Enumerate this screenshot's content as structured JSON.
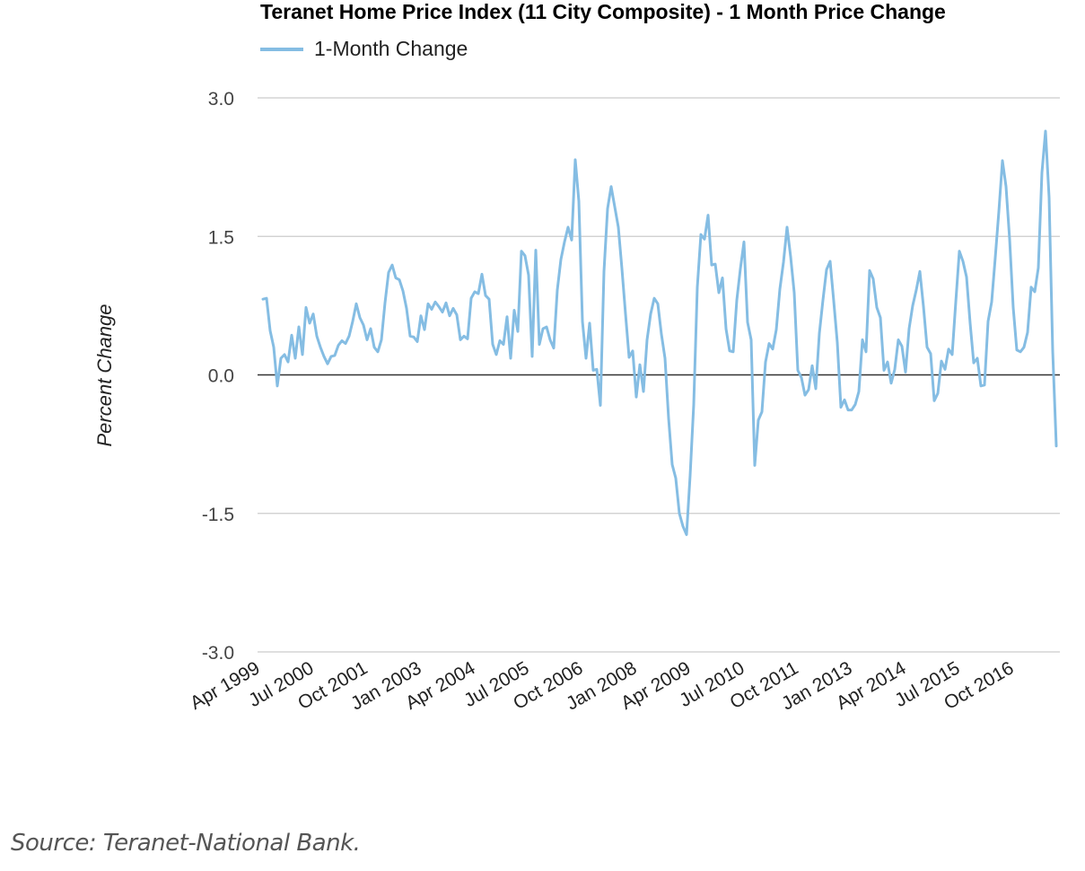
{
  "chart_data": {
    "type": "line",
    "title": "Teranet Home Price Index (11 City Composite) - 1 Month Price Change",
    "ylabel": "Percent Change",
    "xlabel": "",
    "ylim": [
      -3.0,
      3.0
    ],
    "yticks": [
      "3.0",
      "1.5",
      "0.0",
      "-1.5",
      "-3.0"
    ],
    "ytick_values": [
      3.0,
      1.5,
      0.0,
      -1.5,
      -3.0
    ],
    "grid": true,
    "legend": "top-left",
    "x_start": "Apr 1999",
    "x_tick_labels": [
      "Apr 1999",
      "Jul 2000",
      "Oct 2001",
      "Jan 2003",
      "Apr 2004",
      "Jul 2005",
      "Oct 2006",
      "Jan 2008",
      "Apr 2009",
      "Jul 2010",
      "Oct 2011",
      "Jan 2013",
      "Apr 2014",
      "Jul 2015",
      "Oct 2016"
    ],
    "series": [
      {
        "name": "1-Month Change",
        "color": "#85bde3",
        "values": [
          0.82,
          0.83,
          0.48,
          0.3,
          -0.12,
          0.18,
          0.22,
          0.14,
          0.43,
          0.18,
          0.52,
          0.22,
          0.73,
          0.56,
          0.66,
          0.42,
          0.3,
          0.2,
          0.12,
          0.2,
          0.21,
          0.32,
          0.37,
          0.34,
          0.42,
          0.58,
          0.77,
          0.62,
          0.54,
          0.38,
          0.5,
          0.3,
          0.25,
          0.38,
          0.78,
          1.11,
          1.19,
          1.05,
          1.03,
          0.91,
          0.72,
          0.42,
          0.41,
          0.36,
          0.64,
          0.49,
          0.77,
          0.71,
          0.79,
          0.74,
          0.68,
          0.78,
          0.64,
          0.72,
          0.65,
          0.38,
          0.42,
          0.39,
          0.83,
          0.9,
          0.88,
          1.09,
          0.86,
          0.82,
          0.33,
          0.22,
          0.37,
          0.33,
          0.63,
          0.18,
          0.7,
          0.47,
          1.34,
          1.29,
          1.08,
          0.2,
          1.35,
          0.33,
          0.5,
          0.52,
          0.38,
          0.29,
          0.92,
          1.25,
          1.44,
          1.6,
          1.46,
          2.33,
          1.88,
          0.58,
          0.18,
          0.56,
          0.05,
          0.06,
          -0.33,
          1.12,
          1.8,
          2.04,
          1.82,
          1.6,
          1.15,
          0.66,
          0.19,
          0.26,
          -0.24,
          0.11,
          -0.18,
          0.38,
          0.66,
          0.83,
          0.77,
          0.44,
          0.18,
          -0.47,
          -0.97,
          -1.12,
          -1.5,
          -1.64,
          -1.73,
          -1.09,
          -0.32,
          0.95,
          1.52,
          1.47,
          1.73,
          1.19,
          1.2,
          0.89,
          1.05,
          0.5,
          0.26,
          0.25,
          0.81,
          1.15,
          1.44,
          0.57,
          0.38,
          -0.98,
          -0.49,
          -0.4,
          0.14,
          0.34,
          0.28,
          0.49,
          0.93,
          1.22,
          1.6,
          1.28,
          0.89,
          0.05,
          -0.03,
          -0.22,
          -0.16,
          0.1,
          -0.15,
          0.45,
          0.81,
          1.14,
          1.23,
          0.8,
          0.35,
          -0.35,
          -0.27,
          -0.38,
          -0.38,
          -0.32,
          -0.18,
          0.38,
          0.25,
          1.13,
          1.04,
          0.73,
          0.62,
          0.05,
          0.14,
          -0.09,
          0.06,
          0.38,
          0.31,
          0.03,
          0.5,
          0.75,
          0.92,
          1.12,
          0.74,
          0.3,
          0.23,
          -0.28,
          -0.2,
          0.15,
          0.06,
          0.28,
          0.22,
          0.79,
          1.34,
          1.23,
          1.06,
          0.56,
          0.13,
          0.18,
          -0.12,
          -0.11,
          0.58,
          0.79,
          1.27,
          1.77,
          2.32,
          2.04,
          1.47,
          0.73,
          0.27,
          0.25,
          0.3,
          0.46,
          0.95,
          0.9,
          1.16,
          2.19,
          2.64,
          1.92,
          0.26,
          -0.77
        ]
      }
    ]
  },
  "source_text": "Source: Teranet-National Bank."
}
